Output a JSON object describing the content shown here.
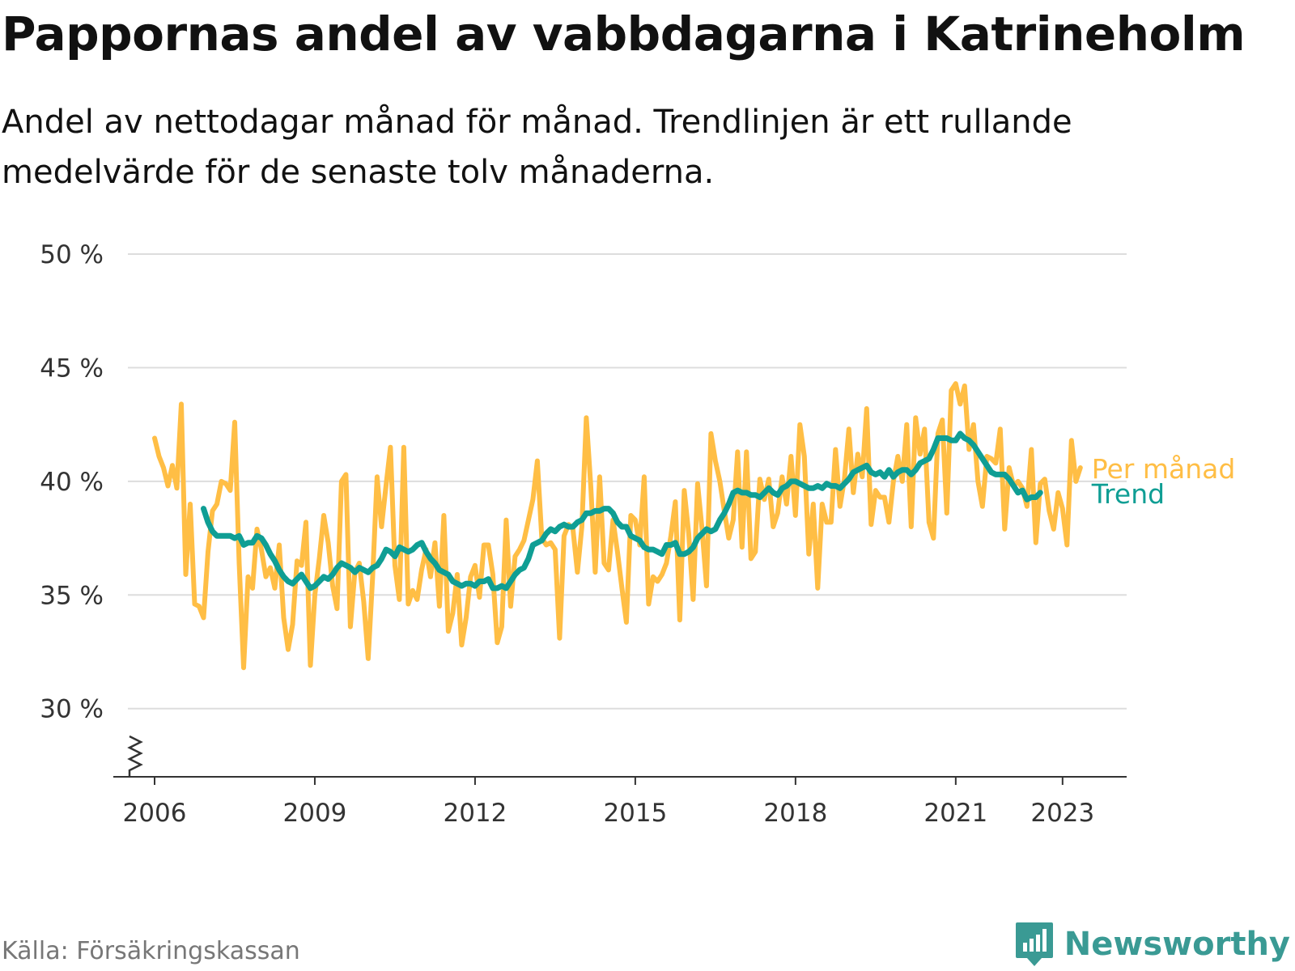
{
  "title": "Pappornas andel av vabbdagarna i Katrineholm",
  "subtitle": "Andel av nettodagar månad för månad. Trendlinjen är ett rullande medelvärde för de senaste tolv månaderna.",
  "source": "Källa: Försäkringskassan",
  "brand": {
    "name": "Newsworthy",
    "icon": "newsworthy-logo-icon",
    "color": "#3a9a94"
  },
  "colors": {
    "monthly": "#ffbe45",
    "trend": "#0f9e94",
    "grid": "#dddddd",
    "axis": "#333333"
  },
  "chart_data": {
    "type": "line",
    "title": "Pappornas andel av vabbdagarna i Katrineholm",
    "ylabel": "",
    "xlabel": "",
    "ylim": [
      27,
      50
    ],
    "xlim": [
      2005.5,
      2024.2
    ],
    "y_ticks": [
      30,
      35,
      40,
      45,
      50
    ],
    "y_tick_labels": [
      "30 %",
      "35 %",
      "40 %",
      "45 %",
      "50 %"
    ],
    "x_ticks": [
      2006,
      2009,
      2012,
      2015,
      2018,
      2021,
      2023
    ],
    "x_tick_labels": [
      "2006",
      "2009",
      "2012",
      "2015",
      "2018",
      "2021",
      "2023"
    ],
    "axis_break": true,
    "grid": true,
    "legend": "labels at right end of lines",
    "series": [
      {
        "name": "Per månad",
        "color": "#ffbe45",
        "start": 2006.0,
        "step": 0.08333,
        "values": [
          41.9,
          41.1,
          40.6,
          39.8,
          40.7,
          39.7,
          43.4,
          35.9,
          39.0,
          34.6,
          34.5,
          34.0,
          36.9,
          38.7,
          39.0,
          40.0,
          39.9,
          39.6,
          42.6,
          36.4,
          31.8,
          35.8,
          35.3,
          37.9,
          37.0,
          35.8,
          36.2,
          35.3,
          37.2,
          34.0,
          32.6,
          33.7,
          36.5,
          36.3,
          38.2,
          31.9,
          35.0,
          36.6,
          38.5,
          37.3,
          35.4,
          34.4,
          40.0,
          40.3,
          33.6,
          36.0,
          36.4,
          34.7,
          32.2,
          35.8,
          40.2,
          38.0,
          39.8,
          41.5,
          36.3,
          34.8,
          41.5,
          34.6,
          35.2,
          34.8,
          36.1,
          37.0,
          35.8,
          37.3,
          34.5,
          38.5,
          33.4,
          34.2,
          35.9,
          32.8,
          34.0,
          35.8,
          36.3,
          34.9,
          37.2,
          37.2,
          35.9,
          32.9,
          33.6,
          38.3,
          34.5,
          36.7,
          37.0,
          37.4,
          38.3,
          39.2,
          40.9,
          37.5,
          37.2,
          37.3,
          37.0,
          33.1,
          37.6,
          38.1,
          37.9,
          36.0,
          38.0,
          42.8,
          39.8,
          36.0,
          40.2,
          36.4,
          36.1,
          38.3,
          36.9,
          35.3,
          33.8,
          38.5,
          38.3,
          37.2,
          40.2,
          34.6,
          35.8,
          35.6,
          35.9,
          36.4,
          37.6,
          39.1,
          33.9,
          39.6,
          37.7,
          34.8,
          39.9,
          37.9,
          35.4,
          42.1,
          40.9,
          40.0,
          38.7,
          37.5,
          38.3,
          41.3,
          37.1,
          41.3,
          36.6,
          36.9,
          40.1,
          39.2,
          40.1,
          38.0,
          38.6,
          40.2,
          39.0,
          41.1,
          38.5,
          42.5,
          41.1,
          36.8,
          39.0,
          35.3,
          39.0,
          38.2,
          38.2,
          41.4,
          38.9,
          40.1,
          42.3,
          39.5,
          41.2,
          40.2,
          43.2,
          38.1,
          39.6,
          39.3,
          39.3,
          38.2,
          40.0,
          41.1,
          40.0,
          42.5,
          38.0,
          42.8,
          41.2,
          42.3,
          38.2,
          37.5,
          42.1,
          42.7,
          38.6,
          44.0,
          44.3,
          43.4,
          44.2,
          41.4,
          42.5,
          40.0,
          38.9,
          41.1,
          41.0,
          40.8,
          42.3,
          37.9,
          40.6,
          39.8,
          40.0,
          39.7,
          38.9,
          41.4,
          37.3,
          39.9,
          40.1,
          38.7,
          37.9,
          39.5,
          38.8,
          37.2,
          41.8,
          40.0,
          40.6
        ]
      },
      {
        "name": "Trend",
        "color": "#0f9e94",
        "start": 2006.917,
        "step": 0.08333,
        "values": [
          38.8,
          38.2,
          37.8,
          37.6,
          37.6,
          37.6,
          37.6,
          37.5,
          37.6,
          37.2,
          37.3,
          37.3,
          37.6,
          37.5,
          37.2,
          36.8,
          36.5,
          36.1,
          35.8,
          35.6,
          35.5,
          35.7,
          35.9,
          35.6,
          35.3,
          35.4,
          35.6,
          35.8,
          35.7,
          35.9,
          36.2,
          36.4,
          36.3,
          36.2,
          36.0,
          36.2,
          36.1,
          36.0,
          36.2,
          36.3,
          36.6,
          37.0,
          36.9,
          36.7,
          37.1,
          37.0,
          36.9,
          37.0,
          37.2,
          37.3,
          36.9,
          36.6,
          36.4,
          36.1,
          36.0,
          35.9,
          35.6,
          35.5,
          35.4,
          35.5,
          35.5,
          35.4,
          35.6,
          35.6,
          35.7,
          35.3,
          35.3,
          35.4,
          35.3,
          35.6,
          35.9,
          36.1,
          36.2,
          36.6,
          37.2,
          37.3,
          37.4,
          37.7,
          37.9,
          37.8,
          38.0,
          38.1,
          38.0,
          38.0,
          38.2,
          38.3,
          38.6,
          38.6,
          38.7,
          38.7,
          38.8,
          38.8,
          38.6,
          38.2,
          38.0,
          38.0,
          37.6,
          37.5,
          37.4,
          37.1,
          37.0,
          37.0,
          36.9,
          36.8,
          37.2,
          37.2,
          37.3,
          36.8,
          36.8,
          36.9,
          37.1,
          37.5,
          37.7,
          37.9,
          37.8,
          37.9,
          38.3,
          38.6,
          39.0,
          39.5,
          39.6,
          39.5,
          39.5,
          39.4,
          39.4,
          39.3,
          39.5,
          39.7,
          39.5,
          39.4,
          39.7,
          39.8,
          40.0,
          40.0,
          39.9,
          39.8,
          39.7,
          39.7,
          39.8,
          39.7,
          39.9,
          39.8,
          39.8,
          39.7,
          39.9,
          40.1,
          40.4,
          40.5,
          40.6,
          40.7,
          40.4,
          40.3,
          40.4,
          40.2,
          40.5,
          40.2,
          40.4,
          40.5,
          40.5,
          40.3,
          40.5,
          40.8,
          40.9,
          41.0,
          41.4,
          41.9,
          41.9,
          41.9,
          41.8,
          41.8,
          42.1,
          41.9,
          41.8,
          41.6,
          41.3,
          41.0,
          40.7,
          40.4,
          40.3,
          40.3,
          40.3,
          40.1,
          39.8,
          39.5,
          39.6,
          39.2,
          39.3,
          39.3,
          39.5
        ]
      }
    ]
  }
}
